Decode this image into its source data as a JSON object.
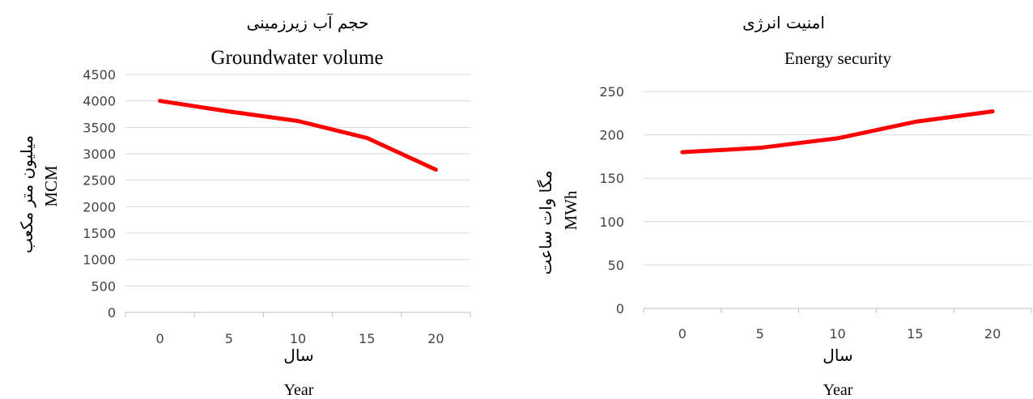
{
  "colors": {
    "series": "#ff0000"
  },
  "chart_data": [
    {
      "type": "line",
      "title_fa": "حجم آب زیرزمینی",
      "title": "Groundwater volume",
      "ylabel_fa": "میلیون متر مکعب",
      "ylabel": "MCM",
      "xlabel_fa": "سال",
      "xlabel": "Year",
      "categories": [
        "0",
        "5",
        "10",
        "15",
        "20"
      ],
      "values": [
        4000,
        3800,
        3620,
        3300,
        2700
      ],
      "ylim": [
        0,
        4500
      ],
      "yticks": [
        "0",
        "500",
        "1000",
        "1500",
        "2000",
        "2500",
        "3000",
        "3500",
        "4000",
        "4500"
      ],
      "ytick_values": [
        0,
        500,
        1000,
        1500,
        2000,
        2500,
        3000,
        3500,
        4000,
        4500
      ],
      "grid": true
    },
    {
      "type": "line",
      "title_fa": "امنیت انرژی",
      "title": "Energy security",
      "ylabel_fa": "مگا وات ساعت",
      "ylabel": "MWh",
      "xlabel_fa": "سال",
      "xlabel": "Year",
      "categories": [
        "0",
        "5",
        "10",
        "15",
        "20"
      ],
      "values": [
        180,
        185,
        196,
        215,
        227
      ],
      "ylim": [
        0,
        250
      ],
      "yticks": [
        "0",
        "50",
        "100",
        "150",
        "200",
        "250"
      ],
      "ytick_values": [
        0,
        50,
        100,
        150,
        200,
        250
      ],
      "grid": true
    }
  ]
}
